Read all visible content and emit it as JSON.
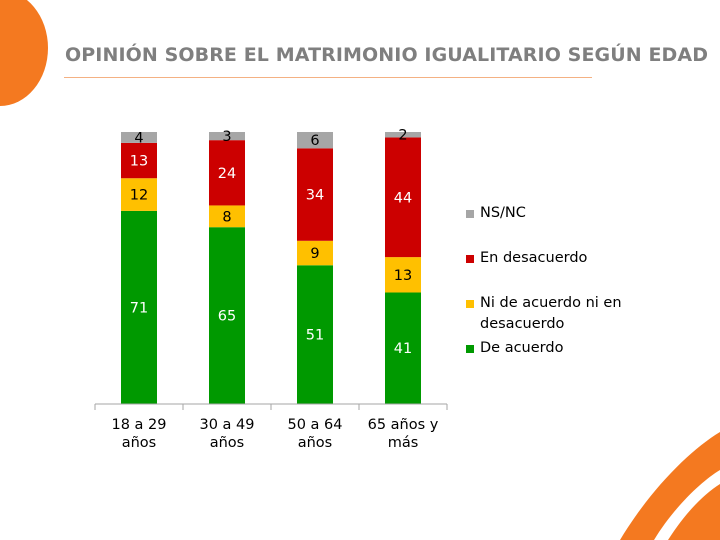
{
  "title": "OPINIÓN SOBRE EL MATRIMONIO IGUALITARIO SEGÚN EDAD",
  "colors": {
    "accent": "#f47920",
    "title": "#7f7f7f",
    "rule": "#f4b183"
  },
  "chart_data": {
    "type": "bar",
    "stacked": true,
    "categories": [
      [
        "18 a 29",
        "años"
      ],
      [
        "30 a 49",
        "años"
      ],
      [
        "50 a 64",
        "años"
      ],
      [
        "65 años y",
        "más"
      ]
    ],
    "series": [
      {
        "name": "De acuerdo",
        "color": "#009900",
        "label_color": "#ffffff",
        "values": [
          71,
          65,
          51,
          41
        ]
      },
      {
        "name": "Ni de acuerdo ni en desacuerdo",
        "color": "#ffc000",
        "label_color": "#000000",
        "values": [
          12,
          8,
          9,
          13
        ]
      },
      {
        "name": "En desacuerdo",
        "color": "#cc0000",
        "label_color": "#ffffff",
        "values": [
          13,
          24,
          34,
          44
        ]
      },
      {
        "name": "NS/NC",
        "color": "#a6a6a6",
        "label_color": "#000000",
        "values": [
          4,
          3,
          6,
          2
        ]
      }
    ],
    "ylim": [
      0,
      100
    ],
    "grid": false,
    "legend_position": "right",
    "legend": [
      {
        "label": "NS/NC",
        "color": "#a6a6a6"
      },
      {
        "label": "En desacuerdo",
        "color": "#cc0000"
      },
      {
        "label": "Ni de acuerdo ni en desacuerdo",
        "color": "#ffc000"
      },
      {
        "label": "De acuerdo",
        "color": "#009900"
      }
    ]
  }
}
